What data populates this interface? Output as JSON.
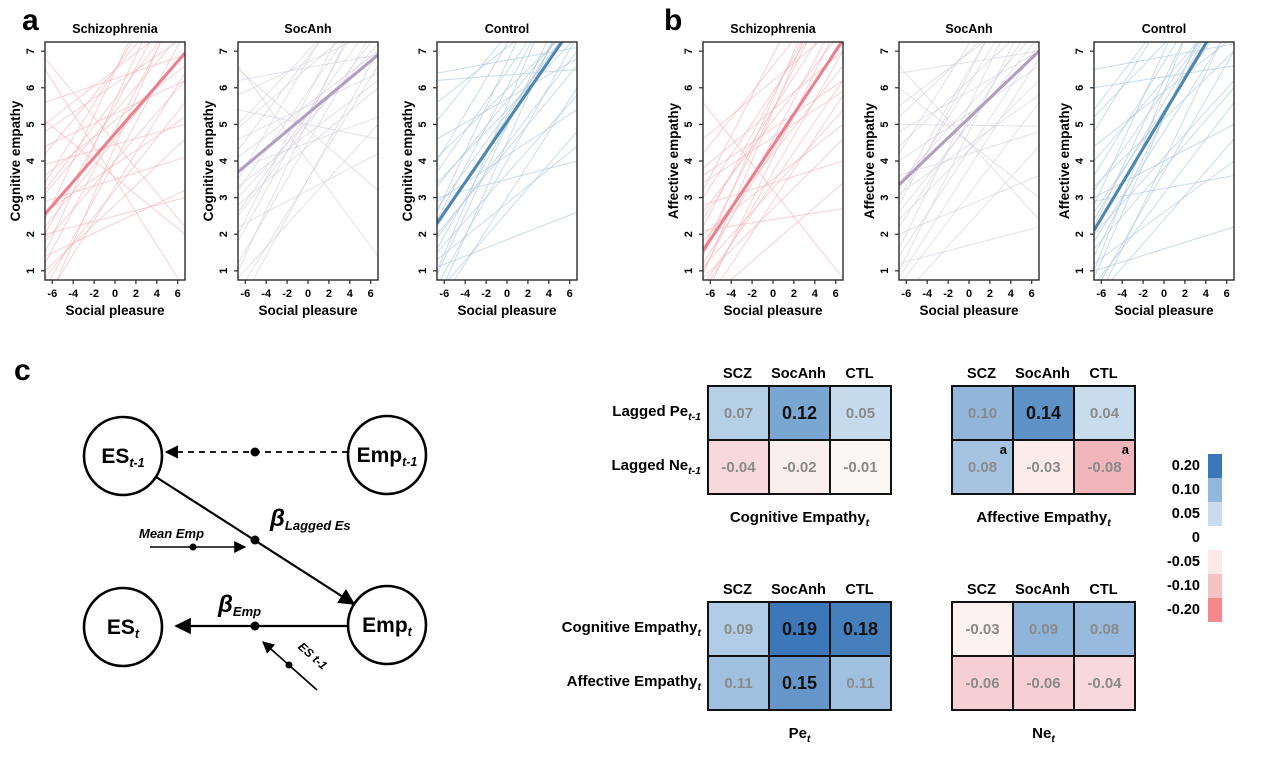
{
  "panels": {
    "a": {
      "label": "a"
    },
    "b": {
      "label": "b"
    },
    "c": {
      "label": "c"
    }
  },
  "chart_data": [
    {
      "id": "a-scz",
      "type": "line",
      "panel": "a",
      "title": "Schizophrenia",
      "xlabel": "Social pleasure",
      "ylabel": "Cognitive empathy",
      "xlim": [
        -6.7,
        6.7
      ],
      "ylim": [
        0.75,
        7.25
      ],
      "xticks": [
        -6,
        -4,
        -2,
        0,
        2,
        4,
        6
      ],
      "yticks": [
        1,
        2,
        3,
        4,
        5,
        6,
        7
      ],
      "grid": false,
      "color_thin": "#f4b6ba",
      "color_thick": "#e9828e",
      "mean_line": [
        2.55,
        6.95
      ],
      "subject_lines": [
        [
          0.5,
          7.5
        ],
        [
          1.2,
          8.5
        ],
        [
          2.0,
          9.0
        ],
        [
          3.1,
          7.6
        ],
        [
          1.8,
          6.2
        ],
        [
          2.6,
          5.2
        ],
        [
          4.8,
          7.4
        ],
        [
          3.4,
          9.6
        ],
        [
          0.2,
          6.4
        ],
        [
          1.5,
          9.8
        ],
        [
          5.1,
          2.0
        ],
        [
          6.8,
          2.2
        ],
        [
          3.9,
          5.0
        ],
        [
          2.2,
          7.0
        ],
        [
          0.8,
          5.6
        ],
        [
          4.2,
          8.8
        ],
        [
          2.9,
          4.1
        ],
        [
          1.0,
          4.6
        ],
        [
          3.6,
          6.6
        ],
        [
          5.0,
          8.0
        ],
        [
          0.0,
          8.8
        ],
        [
          2.4,
          10.5
        ],
        [
          4.4,
          6.2
        ],
        [
          1.4,
          3.2
        ],
        [
          3.2,
          8.2
        ],
        [
          5.6,
          6.9
        ],
        [
          2.0,
          3.0
        ],
        [
          6.5,
          0.5
        ]
      ]
    },
    {
      "id": "a-socanh",
      "type": "line",
      "panel": "a",
      "title": "SocAnh",
      "xlabel": "Social pleasure",
      "ylabel": "Cognitive empathy",
      "xlim": [
        -6.7,
        6.7
      ],
      "ylim": [
        0.75,
        7.25
      ],
      "xticks": [
        -6,
        -4,
        -2,
        0,
        2,
        4,
        6
      ],
      "yticks": [
        1,
        2,
        3,
        4,
        5,
        6,
        7
      ],
      "grid": false,
      "color_thin": "#d8cedf",
      "color_thick": "#b19fc2",
      "mean_line": [
        3.7,
        6.9
      ],
      "subject_lines": [
        [
          2.5,
          7.5
        ],
        [
          3.2,
          8.6
        ],
        [
          4.1,
          7.0
        ],
        [
          5.0,
          9.0
        ],
        [
          1.2,
          7.8
        ],
        [
          0.4,
          6.6
        ],
        [
          2.0,
          9.6
        ],
        [
          3.8,
          5.2
        ],
        [
          4.6,
          6.4
        ],
        [
          6.5,
          3.2
        ],
        [
          5.8,
          7.6
        ],
        [
          1.8,
          8.8
        ],
        [
          2.8,
          6.0
        ],
        [
          3.5,
          10.0
        ],
        [
          0.8,
          5.0
        ],
        [
          4.9,
          8.2
        ],
        [
          6.2,
          6.9
        ],
        [
          2.2,
          4.2
        ],
        [
          1.0,
          9.2
        ],
        [
          3.0,
          7.2
        ],
        [
          5.4,
          4.6
        ],
        [
          0.0,
          7.0
        ],
        [
          4.3,
          9.4
        ],
        [
          2.6,
          8.0
        ],
        [
          6.6,
          1.4
        ],
        [
          3.3,
          6.2
        ]
      ]
    },
    {
      "id": "a-ctl",
      "type": "line",
      "panel": "a",
      "title": "Control",
      "xlabel": "Social pleasure",
      "ylabel": "Cognitive empathy",
      "xlim": [
        -6.7,
        6.7
      ],
      "ylim": [
        0.75,
        7.25
      ],
      "xticks": [
        -6,
        -4,
        -2,
        0,
        2,
        4,
        6
      ],
      "yticks": [
        1,
        2,
        3,
        4,
        5,
        6,
        7
      ],
      "grid": false,
      "color_thin": "#aec8dd",
      "color_thick": "#4d87b0",
      "mean_line": [
        2.3,
        7.85
      ],
      "subject_lines": [
        [
          1.6,
          8.4
        ],
        [
          2.4,
          9.6
        ],
        [
          0.6,
          7.4
        ],
        [
          3.3,
          8.0
        ],
        [
          1.0,
          10.0
        ],
        [
          2.0,
          6.6
        ],
        [
          4.1,
          7.8
        ],
        [
          0.2,
          8.8
        ],
        [
          2.9,
          5.4
        ],
        [
          6.4,
          7.1
        ],
        [
          5.6,
          8.6
        ],
        [
          1.3,
          4.4
        ],
        [
          3.7,
          9.2
        ],
        [
          0.0,
          6.0
        ],
        [
          2.6,
          10.8
        ],
        [
          4.6,
          6.8
        ],
        [
          1.9,
          7.0
        ],
        [
          6.2,
          6.5
        ],
        [
          3.0,
          4.0
        ],
        [
          0.9,
          9.0
        ],
        [
          2.2,
          8.2
        ],
        [
          5.1,
          9.8
        ],
        [
          1.5,
          5.8
        ],
        [
          3.4,
          7.4
        ],
        [
          0.4,
          4.8
        ],
        [
          2.7,
          7.9
        ],
        [
          1.1,
          2.6
        ],
        [
          4.0,
          10.4
        ]
      ]
    },
    {
      "id": "b-scz",
      "type": "line",
      "panel": "b",
      "title": "Schizophrenia",
      "xlabel": "Social pleasure",
      "ylabel": "Affective empathy",
      "xlim": [
        -6.7,
        6.7
      ],
      "ylim": [
        0.75,
        7.25
      ],
      "xticks": [
        -6,
        -4,
        -2,
        0,
        2,
        4,
        6
      ],
      "yticks": [
        1,
        2,
        3,
        4,
        5,
        6,
        7
      ],
      "grid": false,
      "color_thin": "#f4b6ba",
      "color_thick": "#e9828e",
      "mean_line": [
        1.55,
        7.3
      ],
      "subject_lines": [
        [
          0.4,
          7.0
        ],
        [
          1.0,
          8.2
        ],
        [
          2.2,
          9.4
        ],
        [
          0.0,
          5.8
        ],
        [
          1.8,
          6.6
        ],
        [
          3.0,
          8.8
        ],
        [
          0.8,
          4.6
        ],
        [
          2.6,
          7.6
        ],
        [
          1.4,
          10.0
        ],
        [
          3.6,
          6.2
        ],
        [
          0.2,
          8.0
        ],
        [
          2.0,
          5.0
        ],
        [
          4.2,
          9.0
        ],
        [
          1.2,
          7.4
        ],
        [
          3.2,
          10.6
        ],
        [
          0.6,
          6.2
        ],
        [
          2.8,
          4.0
        ],
        [
          1.6,
          9.2
        ],
        [
          3.8,
          7.0
        ],
        [
          0.1,
          3.4
        ],
        [
          2.4,
          8.4
        ],
        [
          4.6,
          7.8
        ],
        [
          1.1,
          5.4
        ],
        [
          3.4,
          5.9
        ],
        [
          2.1,
          2.7
        ],
        [
          0.9,
          9.8
        ],
        [
          5.6,
          0.8
        ]
      ]
    },
    {
      "id": "b-socanh",
      "type": "line",
      "panel": "b",
      "title": "SocAnh",
      "xlabel": "Social pleasure",
      "ylabel": "Affective empathy",
      "xlim": [
        -6.7,
        6.7
      ],
      "ylim": [
        0.75,
        7.25
      ],
      "xticks": [
        -6,
        -4,
        -2,
        0,
        2,
        4,
        6
      ],
      "yticks": [
        1,
        2,
        3,
        4,
        5,
        6,
        7
      ],
      "grid": false,
      "color_thin": "#d8cedf",
      "color_thick": "#b19fc2",
      "mean_line": [
        3.35,
        7.0
      ],
      "subject_lines": [
        [
          2.2,
          8.0
        ],
        [
          3.0,
          9.2
        ],
        [
          4.0,
          6.6
        ],
        [
          5.2,
          8.8
        ],
        [
          1.4,
          7.2
        ],
        [
          0.6,
          5.6
        ],
        [
          2.8,
          10.0
        ],
        [
          3.6,
          4.8
        ],
        [
          4.8,
          7.0
        ],
        [
          6.0,
          3.0
        ],
        [
          5.5,
          8.4
        ],
        [
          1.0,
          8.6
        ],
        [
          2.4,
          6.2
        ],
        [
          3.2,
          9.8
        ],
        [
          0.2,
          4.4
        ],
        [
          4.4,
          8.0
        ],
        [
          6.4,
          7.0
        ],
        [
          2.0,
          3.6
        ],
        [
          1.6,
          9.4
        ],
        [
          3.4,
          7.6
        ],
        [
          5.0,
          4.95
        ],
        [
          0.8,
          6.8
        ],
        [
          4.2,
          10.2
        ],
        [
          2.6,
          7.4
        ],
        [
          6.6,
          2.4
        ],
        [
          3.1,
          5.8
        ],
        [
          1.2,
          2.2
        ]
      ]
    },
    {
      "id": "b-ctl",
      "type": "line",
      "panel": "b",
      "title": "Control",
      "xlabel": "Social pleasure",
      "ylabel": "Affective empathy",
      "xlim": [
        -6.7,
        6.7
      ],
      "ylim": [
        0.75,
        7.25
      ],
      "xticks": [
        -6,
        -4,
        -2,
        0,
        2,
        4,
        6
      ],
      "yticks": [
        1,
        2,
        3,
        4,
        5,
        6,
        7
      ],
      "grid": false,
      "color_thin": "#aec8dd",
      "color_thick": "#4d87b0",
      "mean_line": [
        2.1,
        8.5
      ],
      "subject_lines": [
        [
          1.4,
          9.0
        ],
        [
          2.2,
          10.2
        ],
        [
          0.4,
          7.0
        ],
        [
          3.2,
          8.6
        ],
        [
          1.0,
          10.8
        ],
        [
          2.0,
          6.2
        ],
        [
          4.0,
          8.4
        ],
        [
          0.0,
          8.0
        ],
        [
          3.0,
          5.0
        ],
        [
          6.5,
          7.2
        ],
        [
          5.2,
          9.2
        ],
        [
          1.2,
          4.0
        ],
        [
          3.6,
          9.8
        ],
        [
          0.6,
          5.6
        ],
        [
          2.8,
          11.2
        ],
        [
          4.4,
          7.4
        ],
        [
          1.8,
          7.8
        ],
        [
          6.0,
          6.6
        ],
        [
          2.9,
          3.6
        ],
        [
          0.8,
          9.6
        ],
        [
          2.4,
          8.8
        ],
        [
          5.4,
          10.4
        ],
        [
          1.6,
          6.0
        ],
        [
          3.3,
          7.0
        ],
        [
          0.2,
          4.6
        ],
        [
          2.6,
          8.2
        ],
        [
          1.0,
          2.2
        ],
        [
          4.8,
          11.0
        ]
      ]
    },
    {
      "id": "hm-cog",
      "type": "heatmap",
      "caption": "Cognitive Empathy",
      "caption_sub": "t",
      "columns": [
        "SCZ",
        "SocAnh",
        "CTL"
      ],
      "row_labels": [
        {
          "text": "Lagged Pe",
          "sub": "t-1"
        },
        {
          "text": "Lagged Ne",
          "sub": "t-1"
        }
      ],
      "cells": [
        [
          {
            "v": "0.07",
            "bg": "#b5cfe7",
            "sig": false
          },
          {
            "v": "0.12",
            "bg": "#7aa7d2",
            "sig": true
          },
          {
            "v": "0.05",
            "bg": "#c5daec",
            "sig": false
          }
        ],
        [
          {
            "v": "-0.04",
            "bg": "#f7d9dd",
            "sig": false
          },
          {
            "v": "-0.02",
            "bg": "#f8eeed",
            "sig": false
          },
          {
            "v": "-0.01",
            "bg": "#fbf7f5",
            "sig": false
          }
        ]
      ]
    },
    {
      "id": "hm-aff",
      "type": "heatmap",
      "caption": "Affective Empathy",
      "caption_sub": "t",
      "columns": [
        "SCZ",
        "SocAnh",
        "CTL"
      ],
      "row_labels": [],
      "cells": [
        [
          {
            "v": "0.10",
            "bg": "#92b5da",
            "sig": false
          },
          {
            "v": "0.14",
            "bg": "#5e91c6",
            "sig": true
          },
          {
            "v": "0.04",
            "bg": "#c9dcee",
            "sig": false
          }
        ],
        [
          {
            "v": "0.08",
            "bg": "#a6c4e2",
            "sig": false,
            "sup": "a"
          },
          {
            "v": "-0.03",
            "bg": "#fbebeb",
            "sig": false
          },
          {
            "v": "-0.08",
            "bg": "#f0b6bb",
            "sig": false,
            "sup": "a"
          }
        ]
      ]
    },
    {
      "id": "hm-pe",
      "type": "heatmap",
      "caption": "Pe",
      "caption_sub": "t",
      "columns": [
        "SCZ",
        "SocAnh",
        "CTL"
      ],
      "row_labels": [
        {
          "text": "Cognitive Empathy",
          "sub": "t"
        },
        {
          "text": "Affective Empathy",
          "sub": "t"
        }
      ],
      "cells": [
        [
          {
            "v": "0.09",
            "bg": "#b0cce6",
            "sig": false
          },
          {
            "v": "0.19",
            "bg": "#3c77b9",
            "sig": true
          },
          {
            "v": "0.18",
            "bg": "#4680bc",
            "sig": true
          }
        ],
        [
          {
            "v": "0.11",
            "bg": "#a0c0e0",
            "sig": false
          },
          {
            "v": "0.15",
            "bg": "#6696c9",
            "sig": true
          },
          {
            "v": "0.11",
            "bg": "#a0c0e0",
            "sig": false
          }
        ]
      ]
    },
    {
      "id": "hm-ne",
      "type": "heatmap",
      "caption": "Ne",
      "caption_sub": "t",
      "columns": [
        "SCZ",
        "SocAnh",
        "CTL"
      ],
      "row_labels": [],
      "cells": [
        [
          {
            "v": "-0.03",
            "bg": "#fdf2f1",
            "sig": false
          },
          {
            "v": "0.09",
            "bg": "#8fb4da",
            "sig": false
          },
          {
            "v": "0.08",
            "bg": "#97badd",
            "sig": false
          }
        ],
        [
          {
            "v": "-0.06",
            "bg": "#f5cfd3",
            "sig": false
          },
          {
            "v": "-0.06",
            "bg": "#f5cfd3",
            "sig": false
          },
          {
            "v": "-0.04",
            "bg": "#f7d9dd",
            "sig": false
          }
        ]
      ]
    }
  ],
  "legend": {
    "entries": [
      {
        "label": "0.20",
        "color": "#3a76b8"
      },
      {
        "label": "0.10",
        "color": "#92b6dc"
      },
      {
        "label": "0.05",
        "color": "#c9dbed"
      },
      {
        "label": "0",
        "color": ""
      },
      {
        "label": "-0.05",
        "color": "#fbe9e9"
      },
      {
        "label": "-0.10",
        "color": "#f3c3c6"
      },
      {
        "label": "-0.20",
        "color": "#f4898d"
      }
    ]
  },
  "diagram": {
    "nodes": [
      {
        "id": "es-lag",
        "main": "ES",
        "sub": "t-1"
      },
      {
        "id": "emp-lag",
        "main": "Emp",
        "sub": "t-1"
      },
      {
        "id": "es-t",
        "main": "ES",
        "sub": "t"
      },
      {
        "id": "emp-t",
        "main": "Emp",
        "sub": "t"
      }
    ],
    "labels": {
      "beta_lagged_main": "β",
      "beta_lagged_sub": "Lagged Es",
      "beta_emp_main": "β",
      "beta_emp_sub": "Emp",
      "moderator_mean": "Mean Emp",
      "moderator_es": "ES t-1"
    }
  }
}
